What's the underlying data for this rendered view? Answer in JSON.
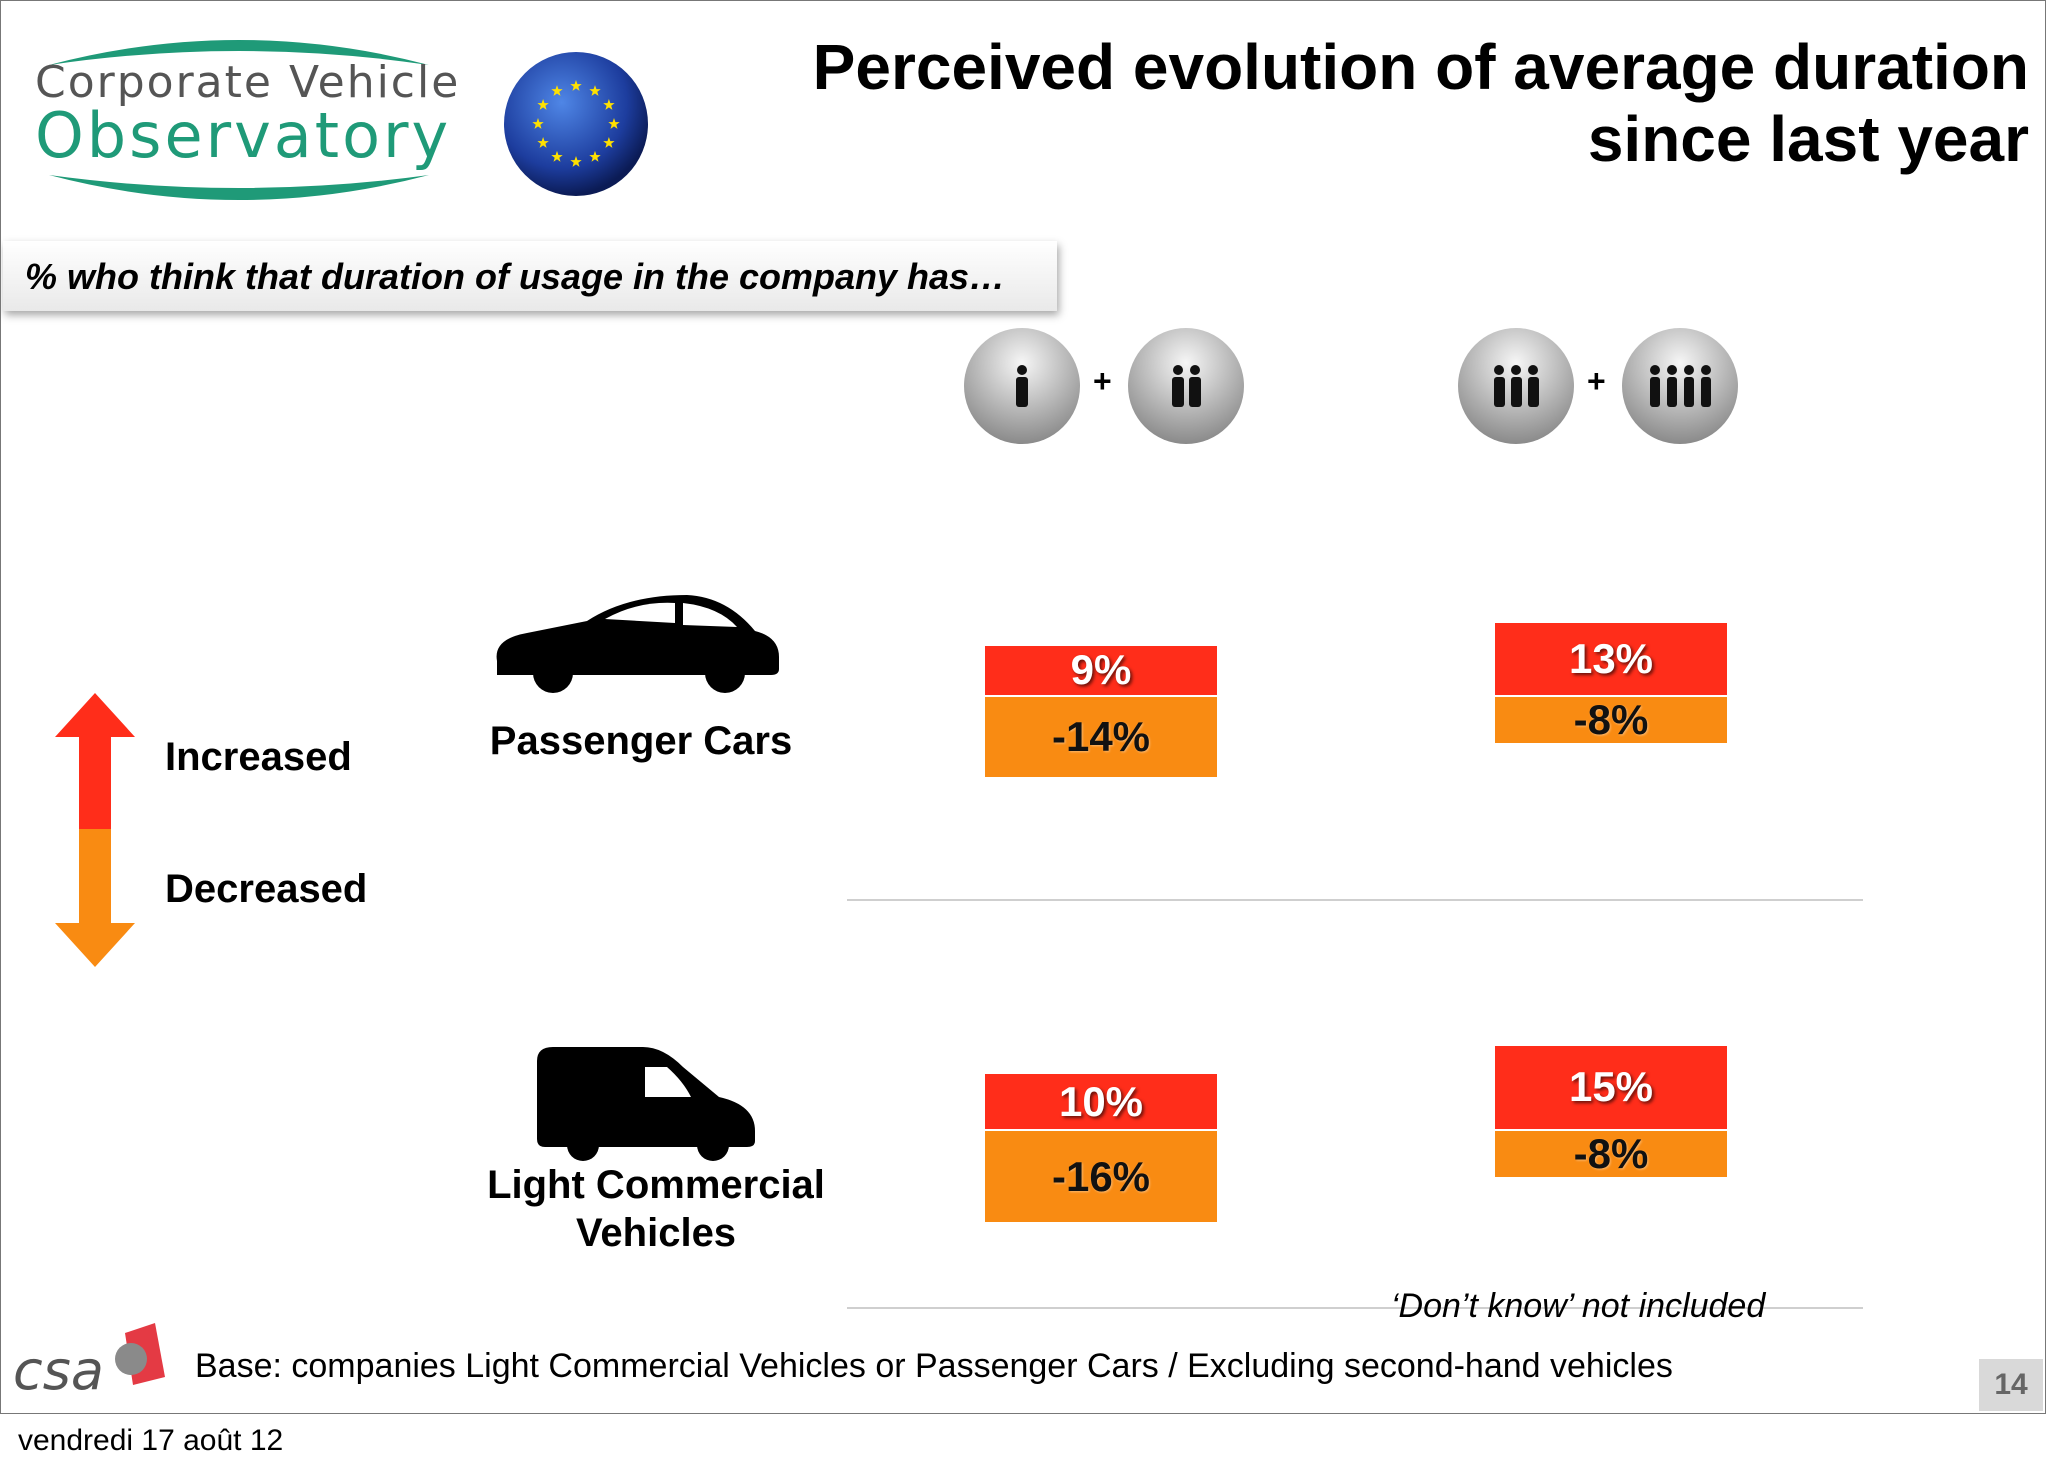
{
  "logo": {
    "line1": "Corporate Vehicle",
    "line2": "Observatory",
    "brand_color": "#1f9a78"
  },
  "title": "Perceived evolution of average duration since last year",
  "subtitle": "% who think that duration of usage in the company has…",
  "legend": {
    "increased": "Increased",
    "decreased": "Decreased"
  },
  "columns": [
    {
      "icon": "small-companies-icon",
      "plus": "+"
    },
    {
      "icon": "large-companies-icon",
      "plus": "+"
    }
  ],
  "rows": [
    {
      "label": "Passenger Cars",
      "icon": "car-icon"
    },
    {
      "label_line1": "Light Commercial",
      "label_line2": "Vehicles",
      "icon": "van-icon"
    }
  ],
  "colors": {
    "increased": "#ff2d1a",
    "decreased": "#f98b12"
  },
  "chart_data": {
    "type": "bar",
    "categories": [
      "Passenger Cars",
      "Light Commercial Vehicles"
    ],
    "series": [
      {
        "name": "Increased",
        "values": [
          [
            9,
            13
          ],
          [
            10,
            15
          ]
        ],
        "labels": [
          [
            "9%",
            "13%"
          ],
          [
            "10%",
            "15%"
          ]
        ]
      },
      {
        "name": "Decreased",
        "values": [
          [
            -14,
            -8
          ],
          [
            -16,
            -8
          ]
        ],
        "labels": [
          [
            "-14%",
            "-8%"
          ],
          [
            "-16%",
            "-8%"
          ]
        ]
      }
    ]
  },
  "note": "‘Don’t know’ not included",
  "base": "Base: companies Light Commercial Vehicles or Passenger Cars / Excluding second-hand vehicles",
  "csa": "csa",
  "page_number": "14",
  "date": "vendredi 17 août 12"
}
